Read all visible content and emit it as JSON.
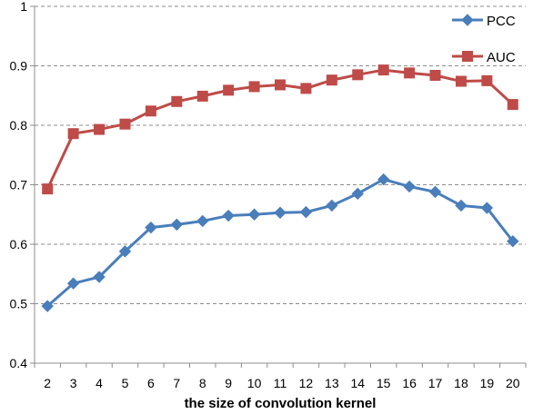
{
  "chart_data": {
    "type": "line",
    "title": "",
    "xlabel": "the size of convolution kernel",
    "ylabel": "",
    "x": [
      2,
      3,
      4,
      5,
      6,
      7,
      8,
      9,
      10,
      11,
      12,
      13,
      14,
      15,
      16,
      17,
      18,
      19,
      20
    ],
    "ylim": [
      0.4,
      1
    ],
    "yticks": [
      "0.4",
      "0.5",
      "0.6",
      "0.7",
      "0.8",
      "0.9",
      "1"
    ],
    "grid": "horizontal dashed",
    "legend_position": "top-right",
    "series": [
      {
        "name": "PCC",
        "color": "#4a7ebb",
        "marker": "diamond",
        "values": [
          0.496,
          0.534,
          0.545,
          0.588,
          0.628,
          0.633,
          0.639,
          0.648,
          0.65,
          0.653,
          0.654,
          0.665,
          0.685,
          0.709,
          0.697,
          0.688,
          0.665,
          0.661,
          0.605
        ]
      },
      {
        "name": "AUC",
        "color": "#be4b48",
        "marker": "square",
        "values": [
          0.693,
          0.786,
          0.793,
          0.802,
          0.824,
          0.84,
          0.849,
          0.859,
          0.865,
          0.868,
          0.862,
          0.876,
          0.885,
          0.893,
          0.888,
          0.884,
          0.874,
          0.875,
          0.835
        ]
      }
    ]
  }
}
